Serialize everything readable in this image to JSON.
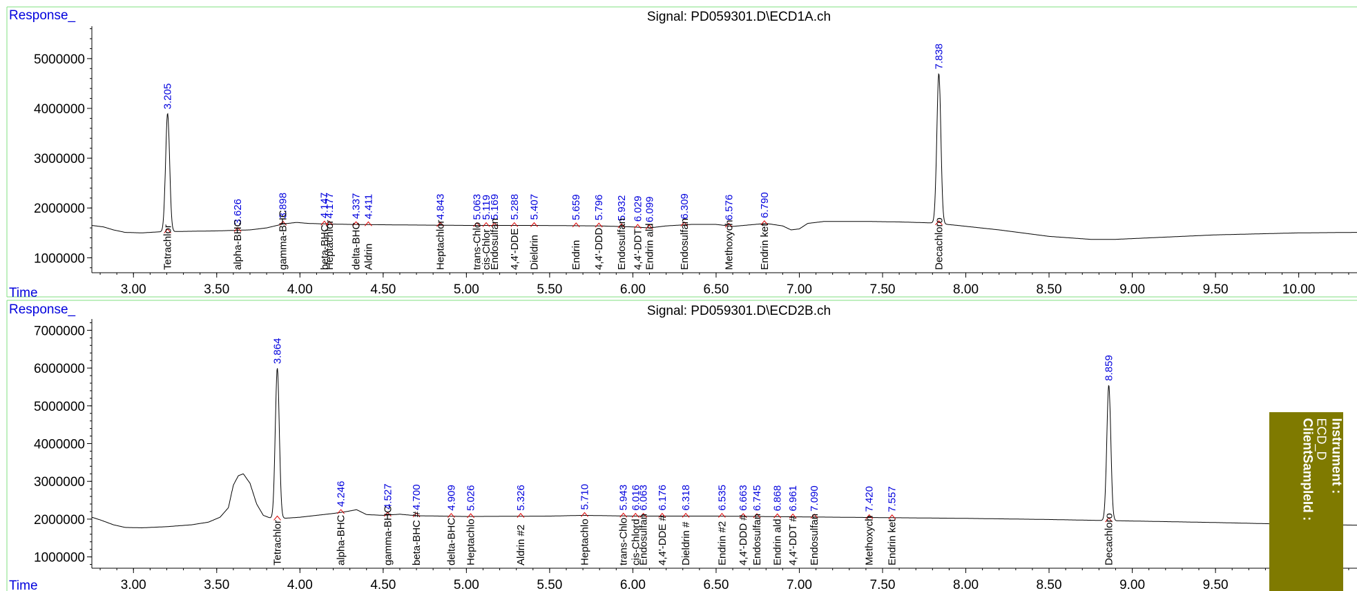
{
  "chart_data": [
    {
      "type": "line",
      "title": "Signal: PD059301.D\\ECD1A.ch",
      "ylabel": "Response_",
      "xlabel": "Time",
      "xlim": [
        2.75,
        10.35
      ],
      "ylim": [
        700000,
        5650000
      ],
      "xticks": [
        "3.00",
        "3.50",
        "4.00",
        "4.50",
        "5.00",
        "5.50",
        "6.00",
        "6.50",
        "7.00",
        "7.50",
        "8.00",
        "8.50",
        "9.00",
        "9.50",
        "10.00"
      ],
      "yticks": [
        "1000000",
        "2000000",
        "3000000",
        "4000000",
        "5000000"
      ],
      "baseline": [
        [
          2.75,
          1650000
        ],
        [
          2.82,
          1620000
        ],
        [
          2.88,
          1560000
        ],
        [
          2.95,
          1510000
        ],
        [
          3.05,
          1500000
        ],
        [
          3.15,
          1520000
        ],
        [
          3.3,
          1530000
        ],
        [
          3.5,
          1540000
        ],
        [
          3.7,
          1560000
        ],
        [
          3.8,
          1600000
        ],
        [
          3.9,
          1680000
        ],
        [
          3.98,
          1710000
        ],
        [
          4.05,
          1690000
        ],
        [
          4.15,
          1680000
        ],
        [
          4.3,
          1670000
        ],
        [
          4.6,
          1660000
        ],
        [
          5.0,
          1650000
        ],
        [
          5.4,
          1650000
        ],
        [
          5.8,
          1640000
        ],
        [
          6.0,
          1620000
        ],
        [
          6.1,
          1600000
        ],
        [
          6.2,
          1640000
        ],
        [
          6.35,
          1670000
        ],
        [
          6.5,
          1670000
        ],
        [
          6.6,
          1630000
        ],
        [
          6.7,
          1660000
        ],
        [
          6.8,
          1690000
        ],
        [
          6.9,
          1640000
        ],
        [
          6.95,
          1560000
        ],
        [
          7.0,
          1580000
        ],
        [
          7.05,
          1690000
        ],
        [
          7.15,
          1730000
        ],
        [
          7.4,
          1730000
        ],
        [
          7.6,
          1720000
        ],
        [
          7.8,
          1700000
        ],
        [
          7.95,
          1650000
        ],
        [
          8.2,
          1560000
        ],
        [
          8.5,
          1430000
        ],
        [
          8.75,
          1370000
        ],
        [
          8.9,
          1370000
        ],
        [
          9.1,
          1400000
        ],
        [
          9.5,
          1460000
        ],
        [
          10.0,
          1500000
        ],
        [
          10.35,
          1510000
        ]
      ],
      "peaks": [
        {
          "name": "Tetrachlor",
          "rt": "3.205",
          "x": 3.205,
          "height": 3900000,
          "width": 0.012,
          "label_ypx": 293
        },
        {
          "name": "alpha-BHC",
          "rt": "3.626",
          "x": 3.626,
          "height": 0,
          "width": 0.012,
          "label_ypx": 230
        },
        {
          "name": "gamma-BHC",
          "rt": "3.898",
          "x": 3.898,
          "height": 0,
          "width": 0.012,
          "label_ypx": 210
        },
        {
          "name": "beta-BHC",
          "rt": "4.147",
          "x": 4.147,
          "height": 0,
          "width": 0.012,
          "label_ypx": 219
        },
        {
          "name": "Heptachlor",
          "rt": "4.177",
          "x": 4.177,
          "height": 0,
          "width": 0.012,
          "label_ypx": 219
        },
        {
          "name": "delta-BHC",
          "rt": "4.337",
          "x": 4.337,
          "height": 0,
          "width": 0.012,
          "label_ypx": 215
        },
        {
          "name": "Aldrin",
          "rt": "4.411",
          "x": 4.411,
          "height": 0,
          "width": 0.012,
          "label_ypx": 216
        },
        {
          "name": "Heptachlor",
          "rt": "4.843",
          "x": 4.843,
          "height": 0,
          "width": 0.012,
          "label_ypx": 212
        },
        {
          "name": "trans-Chlo",
          "rt": "5.063",
          "x": 5.063,
          "height": 0,
          "width": 0.012,
          "label_ypx": 219
        },
        {
          "name": "cis-Chlor",
          "rt": "5.119",
          "x": 5.119,
          "height": 0,
          "width": 0.012,
          "label_ypx": 219
        },
        {
          "name": "Endosulfan",
          "rt": "5.169",
          "x": 5.169,
          "height": 0,
          "width": 0.012,
          "label_ypx": 219
        },
        {
          "name": "4,4'-DDE",
          "rt": "5.288",
          "x": 5.288,
          "height": 0,
          "width": 0.012,
          "label_ypx": 219
        },
        {
          "name": "Dieldrin",
          "rt": "5.407",
          "x": 5.407,
          "height": 0,
          "width": 0.012,
          "label_ypx": 219
        },
        {
          "name": "Endrin",
          "rt": "5.659",
          "x": 5.659,
          "height": 0,
          "width": 0.012,
          "label_ypx": 219
        },
        {
          "name": "4,4'-DDD",
          "rt": "5.796",
          "x": 5.796,
          "height": 0,
          "width": 0.012,
          "label_ypx": 219
        },
        {
          "name": "Endosulfan",
          "rt": "5.932",
          "x": 5.932,
          "height": 0,
          "width": 0.012,
          "label_ypx": 219
        },
        {
          "name": "4,4'-DDT",
          "rt": "6.029",
          "x": 6.029,
          "height": 0,
          "width": 0.012,
          "label_ypx": 219
        },
        {
          "name": "Endrin ald",
          "rt": "6.099",
          "x": 6.099,
          "height": 0,
          "width": 0.012,
          "label_ypx": 219
        },
        {
          "name": "Endosulfan",
          "rt": "6.309",
          "x": 6.309,
          "height": 0,
          "width": 0.012,
          "label_ypx": 219
        },
        {
          "name": "Methoxych",
          "rt": "6.576",
          "x": 6.576,
          "height": 0,
          "width": 0.012,
          "label_ypx": 219
        },
        {
          "name": "Endrin ket",
          "rt": "6.790",
          "x": 6.79,
          "height": 0,
          "width": 0.012,
          "label_ypx": 219
        },
        {
          "name": "Decachloro",
          "rt": "7.838",
          "x": 7.838,
          "height": 4700000,
          "width": 0.012,
          "label_ypx": 290
        }
      ]
    },
    {
      "type": "line",
      "title": "Signal: PD059301.D\\ECD2B.ch",
      "ylabel": "Response_",
      "xlabel": "Time",
      "xlim": [
        2.75,
        10.35
      ],
      "ylim": [
        700000,
        7300000
      ],
      "xticks": [
        "3.00",
        "3.50",
        "4.00",
        "4.50",
        "5.00",
        "5.50",
        "6.00",
        "6.50",
        "7.00",
        "7.50",
        "8.00",
        "8.50",
        "9.00",
        "9.50"
      ],
      "yticks": [
        "1000000",
        "2000000",
        "3000000",
        "4000000",
        "5000000",
        "6000000",
        "7000000"
      ],
      "baseline": [
        [
          2.75,
          2050000
        ],
        [
          2.8,
          1980000
        ],
        [
          2.88,
          1850000
        ],
        [
          2.95,
          1780000
        ],
        [
          3.05,
          1770000
        ],
        [
          3.2,
          1800000
        ],
        [
          3.35,
          1850000
        ],
        [
          3.45,
          1920000
        ],
        [
          3.52,
          2050000
        ],
        [
          3.57,
          2300000
        ],
        [
          3.6,
          2900000
        ],
        [
          3.63,
          3150000
        ],
        [
          3.66,
          3200000
        ],
        [
          3.7,
          2950000
        ],
        [
          3.74,
          2400000
        ],
        [
          3.78,
          2100000
        ],
        [
          3.84,
          2000000
        ],
        [
          3.9,
          2020000
        ],
        [
          4.0,
          2050000
        ],
        [
          4.1,
          2100000
        ],
        [
          4.2,
          2150000
        ],
        [
          4.28,
          2200000
        ],
        [
          4.34,
          2250000
        ],
        [
          4.4,
          2120000
        ],
        [
          4.5,
          2100000
        ],
        [
          4.6,
          2130000
        ],
        [
          4.7,
          2090000
        ],
        [
          5.0,
          2070000
        ],
        [
          5.5,
          2080000
        ],
        [
          5.7,
          2100000
        ],
        [
          6.0,
          2080000
        ],
        [
          6.5,
          2080000
        ],
        [
          7.0,
          2060000
        ],
        [
          7.5,
          2040000
        ],
        [
          8.0,
          2020000
        ],
        [
          8.5,
          1990000
        ],
        [
          9.0,
          1950000
        ],
        [
          9.5,
          1910000
        ],
        [
          10.0,
          1860000
        ],
        [
          10.35,
          1840000
        ]
      ],
      "peaks": [
        {
          "name": "Tetrachlor",
          "rt": "3.864",
          "x": 3.864,
          "height": 6000000,
          "width": 0.012,
          "label_ypx": 653
        },
        {
          "name": "alpha-BHC",
          "rt": "4.246",
          "x": 4.246,
          "height": 0,
          "width": 0.012,
          "label_ypx": 580
        },
        {
          "name": "gamma-BHC",
          "rt": "4.527",
          "x": 4.527,
          "height": 0,
          "width": 0.012,
          "label_ypx": 580
        },
        {
          "name": "beta-BHC #",
          "rt": "4.700",
          "x": 4.7,
          "height": 0,
          "width": 0.012,
          "label_ypx": 580
        },
        {
          "name": "delta-BHC",
          "rt": "4.909",
          "x": 4.909,
          "height": 0,
          "width": 0.012,
          "label_ypx": 580
        },
        {
          "name": "Heptachlo",
          "rt": "5.026",
          "x": 5.026,
          "height": 0,
          "width": 0.012,
          "label_ypx": 580
        },
        {
          "name": "Aldrin #2",
          "rt": "5.326",
          "x": 5.326,
          "height": 0,
          "width": 0.012,
          "label_ypx": 580
        },
        {
          "name": "Heptachlo",
          "rt": "5.710",
          "x": 5.71,
          "height": 0,
          "width": 0.012,
          "label_ypx": 580
        },
        {
          "name": "trans-Chlo",
          "rt": "5.943",
          "x": 5.943,
          "height": 0,
          "width": 0.012,
          "label_ypx": 580
        },
        {
          "name": "cis-Chlord",
          "rt": "6.016",
          "x": 6.016,
          "height": 0,
          "width": 0.012,
          "label_ypx": 580
        },
        {
          "name": "Endosulfan",
          "rt": "6.063",
          "x": 6.063,
          "height": 0,
          "width": 0.012,
          "label_ypx": 580
        },
        {
          "name": "4,4'-DDE #",
          "rt": "6.176",
          "x": 6.176,
          "height": 0,
          "width": 0.012,
          "label_ypx": 580
        },
        {
          "name": "Dieldrin #",
          "rt": "6.318",
          "x": 6.318,
          "height": 0,
          "width": 0.012,
          "label_ypx": 580
        },
        {
          "name": "Endrin #2",
          "rt": "6.535",
          "x": 6.535,
          "height": 0,
          "width": 0.012,
          "label_ypx": 580
        },
        {
          "name": "4,4'-DDD #",
          "rt": "6.663",
          "x": 6.663,
          "height": 0,
          "width": 0.012,
          "label_ypx": 580
        },
        {
          "name": "Endosulfan",
          "rt": "6.745",
          "x": 6.745,
          "height": 0,
          "width": 0.012,
          "label_ypx": 580
        },
        {
          "name": "Endrin ald",
          "rt": "6.868",
          "x": 6.868,
          "height": 0,
          "width": 0.012,
          "label_ypx": 580
        },
        {
          "name": "4,4'-DDT #",
          "rt": "6.961",
          "x": 6.961,
          "height": 0,
          "width": 0.012,
          "label_ypx": 580
        },
        {
          "name": "Endosulfan",
          "rt": "7.090",
          "x": 7.09,
          "height": 0,
          "width": 0.012,
          "label_ypx": 580
        },
        {
          "name": "Methoxych",
          "rt": "7.420",
          "x": 7.42,
          "height": 0,
          "width": 0.012,
          "label_ypx": 580
        },
        {
          "name": "Endrin ket",
          "rt": "7.557",
          "x": 7.557,
          "height": 0,
          "width": 0.012,
          "label_ypx": 580
        },
        {
          "name": "Decachloro",
          "rt": "8.859",
          "x": 8.859,
          "height": 5550000,
          "width": 0.012,
          "label_ypx": 540
        }
      ]
    }
  ],
  "sidebar": {
    "instrument_label": "Instrument :",
    "instrument_value": "ECD_D",
    "client_label": "ClientSampleId :"
  },
  "colors": {
    "frame": "#7fdf7f",
    "axis_text": "#000000",
    "rt_label": "#0000dd",
    "marker": "#dd0000",
    "sidebar_bg": "#7f7a00"
  }
}
